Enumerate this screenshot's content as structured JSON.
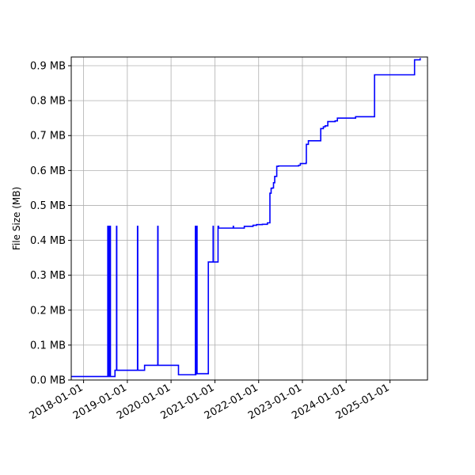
{
  "chart_data": {
    "type": "line",
    "title": "",
    "xlabel": "",
    "ylabel": "File Size (MB)",
    "grid": true,
    "x_range": [
      "2017-09-20",
      "2025-11-10"
    ],
    "y_range": [
      0,
      0.925
    ],
    "x_ticks": [
      {
        "date": "2018-01-01",
        "label": "2018-01-01"
      },
      {
        "date": "2019-01-01",
        "label": "2019-01-01"
      },
      {
        "date": "2020-01-01",
        "label": "2020-01-01"
      },
      {
        "date": "2021-01-01",
        "label": "2021-01-01"
      },
      {
        "date": "2022-01-01",
        "label": "2022-01-01"
      },
      {
        "date": "2023-01-01",
        "label": "2023-01-01"
      },
      {
        "date": "2024-01-01",
        "label": "2024-01-01"
      },
      {
        "date": "2025-01-01",
        "label": "2025-01-01"
      }
    ],
    "y_ticks": [
      {
        "value": 0.0,
        "label": "0.0 MB"
      },
      {
        "value": 0.1,
        "label": "0.1 MB"
      },
      {
        "value": 0.2,
        "label": "0.2 MB"
      },
      {
        "value": 0.3,
        "label": "0.3 MB"
      },
      {
        "value": 0.4,
        "label": "0.4 MB"
      },
      {
        "value": 0.5,
        "label": "0.5 MB"
      },
      {
        "value": 0.6,
        "label": "0.6 MB"
      },
      {
        "value": 0.7,
        "label": "0.7 MB"
      },
      {
        "value": 0.8,
        "label": "0.8 MB"
      },
      {
        "value": 0.9,
        "label": "0.9 MB"
      }
    ],
    "series": [
      {
        "color": "#0000ff",
        "points": [
          [
            "2017-09-20",
            0.01
          ],
          [
            "2018-07-20",
            0.01
          ],
          [
            "2018-07-22",
            0.44
          ],
          [
            "2018-07-24",
            0.01
          ],
          [
            "2018-07-26",
            0.44
          ],
          [
            "2018-07-28",
            0.01
          ],
          [
            "2018-07-30",
            0.44
          ],
          [
            "2018-08-01",
            0.01
          ],
          [
            "2018-08-03",
            0.44
          ],
          [
            "2018-08-05",
            0.01
          ],
          [
            "2018-08-07",
            0.44
          ],
          [
            "2018-08-09",
            0.01
          ],
          [
            "2018-08-11",
            0.44
          ],
          [
            "2018-08-13",
            0.01
          ],
          [
            "2018-09-15",
            0.01
          ],
          [
            "2018-09-20",
            0.028
          ],
          [
            "2018-10-01",
            0.028
          ],
          [
            "2018-10-03",
            0.44
          ],
          [
            "2018-10-05",
            0.028
          ],
          [
            "2019-03-25",
            0.028
          ],
          [
            "2019-03-27",
            0.44
          ],
          [
            "2019-03-29",
            0.028
          ],
          [
            "2019-05-01",
            0.028
          ],
          [
            "2019-05-25",
            0.042
          ],
          [
            "2019-09-10",
            0.042
          ],
          [
            "2019-09-12",
            0.44
          ],
          [
            "2019-09-14",
            0.042
          ],
          [
            "2020-03-01",
            0.042
          ],
          [
            "2020-03-03",
            0.015
          ],
          [
            "2020-07-20",
            0.015
          ],
          [
            "2020-07-22",
            0.44
          ],
          [
            "2020-07-24",
            0.015
          ],
          [
            "2020-07-26",
            0.018
          ],
          [
            "2020-08-01",
            0.018
          ],
          [
            "2020-08-03",
            0.44
          ],
          [
            "2020-08-05",
            0.018
          ],
          [
            "2020-11-05",
            0.018
          ],
          [
            "2020-11-07",
            0.338
          ],
          [
            "2020-12-15",
            0.338
          ],
          [
            "2020-12-17",
            0.44
          ],
          [
            "2020-12-19",
            0.338
          ],
          [
            "2021-01-25",
            0.338
          ],
          [
            "2021-01-27",
            0.44
          ],
          [
            "2021-02-01",
            0.435
          ],
          [
            "2021-06-01",
            0.435
          ],
          [
            "2021-06-03",
            0.44
          ],
          [
            "2021-06-05",
            0.435
          ],
          [
            "2021-09-01",
            0.435
          ],
          [
            "2021-09-03",
            0.44
          ],
          [
            "2021-10-01",
            0.44
          ],
          [
            "2021-11-15",
            0.443
          ],
          [
            "2021-12-15",
            0.445
          ],
          [
            "2022-02-01",
            0.446
          ],
          [
            "2022-03-15",
            0.45
          ],
          [
            "2022-04-01",
            0.45
          ],
          [
            "2022-04-05",
            0.535
          ],
          [
            "2022-04-15",
            0.549
          ],
          [
            "2022-04-25",
            0.55
          ],
          [
            "2022-05-05",
            0.565
          ],
          [
            "2022-05-15",
            0.583
          ],
          [
            "2022-06-01",
            0.612
          ],
          [
            "2022-06-15",
            0.613
          ],
          [
            "2022-12-01",
            0.615
          ],
          [
            "2022-12-15",
            0.62
          ],
          [
            "2023-02-01",
            0.622
          ],
          [
            "2023-02-03",
            0.675
          ],
          [
            "2023-02-20",
            0.685
          ],
          [
            "2023-06-01",
            0.685
          ],
          [
            "2023-06-03",
            0.72
          ],
          [
            "2023-06-25",
            0.725
          ],
          [
            "2023-07-10",
            0.728
          ],
          [
            "2023-08-01",
            0.74
          ],
          [
            "2023-10-01",
            0.742
          ],
          [
            "2023-10-20",
            0.75
          ],
          [
            "2024-03-01",
            0.75
          ],
          [
            "2024-03-20",
            0.754
          ],
          [
            "2024-08-01",
            0.754
          ],
          [
            "2024-08-25",
            0.874
          ],
          [
            "2025-07-20",
            0.874
          ],
          [
            "2025-07-25",
            0.917
          ],
          [
            "2025-09-01",
            0.917
          ],
          [
            "2025-09-10",
            0.922
          ]
        ]
      }
    ]
  }
}
